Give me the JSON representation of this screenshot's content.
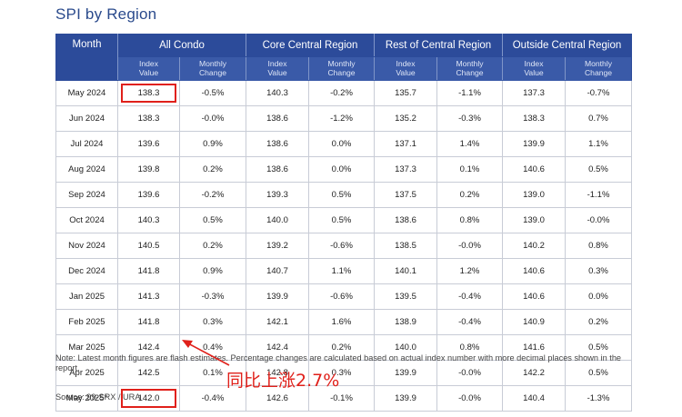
{
  "title": "SPI by Region",
  "table": {
    "month_header": "Month",
    "groups": [
      "All Condo",
      "Core Central Region",
      "Rest of Central Region",
      "Outside Central Region"
    ],
    "sub_headers": [
      [
        "Index",
        "Value"
      ],
      [
        "Monthly",
        "Change"
      ]
    ],
    "rows": [
      {
        "month": "May 2024",
        "cells": [
          "138.3",
          "-0.5%",
          "140.3",
          "-0.2%",
          "135.7",
          "-1.1%",
          "137.3",
          "-0.7%"
        ]
      },
      {
        "month": "Jun 2024",
        "cells": [
          "138.3",
          "-0.0%",
          "138.6",
          "-1.2%",
          "135.2",
          "-0.3%",
          "138.3",
          "0.7%"
        ]
      },
      {
        "month": "Jul 2024",
        "cells": [
          "139.6",
          "0.9%",
          "138.6",
          "0.0%",
          "137.1",
          "1.4%",
          "139.9",
          "1.1%"
        ]
      },
      {
        "month": "Aug 2024",
        "cells": [
          "139.8",
          "0.2%",
          "138.6",
          "0.0%",
          "137.3",
          "0.1%",
          "140.6",
          "0.5%"
        ]
      },
      {
        "month": "Sep 2024",
        "cells": [
          "139.6",
          "-0.2%",
          "139.3",
          "0.5%",
          "137.5",
          "0.2%",
          "139.0",
          "-1.1%"
        ]
      },
      {
        "month": "Oct 2024",
        "cells": [
          "140.3",
          "0.5%",
          "140.0",
          "0.5%",
          "138.6",
          "0.8%",
          "139.0",
          "-0.0%"
        ]
      },
      {
        "month": "Nov 2024",
        "cells": [
          "140.5",
          "0.2%",
          "139.2",
          "-0.6%",
          "138.5",
          "-0.0%",
          "140.2",
          "0.8%"
        ]
      },
      {
        "month": "Dec 2024",
        "cells": [
          "141.8",
          "0.9%",
          "140.7",
          "1.1%",
          "140.1",
          "1.2%",
          "140.6",
          "0.3%"
        ]
      },
      {
        "month": "Jan 2025",
        "cells": [
          "141.3",
          "-0.3%",
          "139.9",
          "-0.6%",
          "139.5",
          "-0.4%",
          "140.6",
          "0.0%"
        ]
      },
      {
        "month": "Feb 2025",
        "cells": [
          "141.8",
          "0.3%",
          "142.1",
          "1.6%",
          "138.9",
          "-0.4%",
          "140.9",
          "0.2%"
        ]
      },
      {
        "month": "Mar 2025",
        "cells": [
          "142.4",
          "0.4%",
          "142.4",
          "0.2%",
          "140.0",
          "0.8%",
          "141.6",
          "0.5%"
        ]
      },
      {
        "month": "Apr 2025",
        "cells": [
          "142.5",
          "0.1%",
          "142.8",
          "0.3%",
          "139.9",
          "-0.0%",
          "142.2",
          "0.5%"
        ]
      },
      {
        "month": "May 2025*",
        "cells": [
          "142.0",
          "-0.4%",
          "142.6",
          "-0.1%",
          "139.9",
          "-0.0%",
          "140.4",
          "-1.3%"
        ]
      }
    ]
  },
  "note": "Note: Latest month figures are flash estimates. Percentage changes are calculated based on actual index number with more decimal places shown in the report.",
  "annotation": "同比上涨2.7%",
  "source": "Source: 99-SRX / URA",
  "colors": {
    "header_bg": "#2c4b9a",
    "subheader_bg": "#3a5aa8",
    "title": "#2a4a8c",
    "highlight": "#e0201a"
  }
}
